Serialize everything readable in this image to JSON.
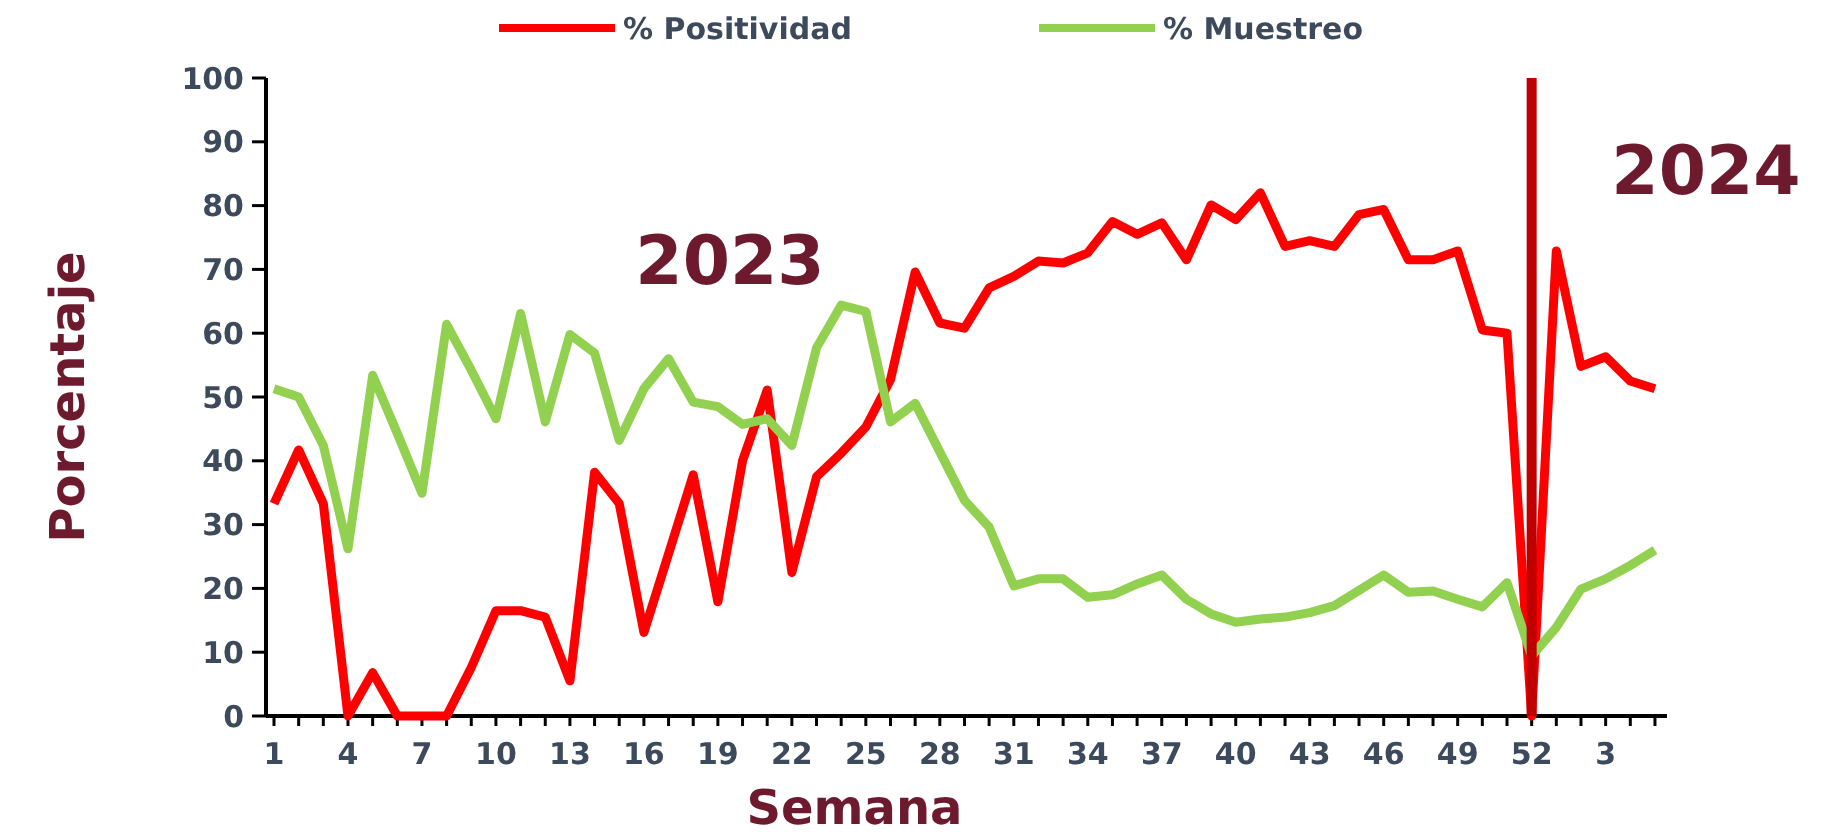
{
  "chart_data": {
    "type": "line",
    "xlabel": "Semana",
    "ylabel": "Porcentaje",
    "categories": [
      "1",
      null,
      null,
      "4",
      null,
      null,
      "7",
      null,
      null,
      "10",
      null,
      null,
      "13",
      null,
      null,
      "16",
      null,
      null,
      "19",
      null,
      null,
      "22",
      null,
      null,
      "25",
      null,
      null,
      "28",
      null,
      null,
      "31",
      null,
      null,
      "34",
      null,
      null,
      "37",
      null,
      null,
      "40",
      null,
      null,
      "43",
      null,
      null,
      "46",
      null,
      null,
      "49",
      null,
      null,
      "52",
      null,
      null,
      "3",
      null,
      null
    ],
    "series": [
      {
        "name": "% Positividad",
        "color": "#ff0000",
        "values": [
          33.3,
          41.7,
          33.3,
          0,
          6.8,
          0,
          0,
          0,
          7.6,
          16.5,
          16.5,
          15.5,
          5.5,
          38.2,
          33.3,
          13.1,
          25.4,
          37.8,
          17.9,
          40,
          51.1,
          22.5,
          37.5,
          41.2,
          45.3,
          52.7,
          69.6,
          61.6,
          60.8,
          67.1,
          68.9,
          71.3,
          71,
          72.6,
          77.5,
          75.5,
          77.3,
          71.5,
          80.1,
          77.8,
          82,
          73.6,
          74.5,
          73.6,
          78.6,
          79.4,
          71.5,
          71.5,
          72.9,
          60.5,
          60,
          0,
          72.9,
          54.8,
          56.3,
          52.5,
          51.3
        ]
      },
      {
        "name": "% Muestreo",
        "color": "#92d050",
        "values": [
          51.3,
          50,
          42.4,
          26.2,
          53.4,
          44.3,
          34.9,
          61.4,
          54.2,
          46.6,
          63.1,
          46.1,
          59.8,
          56.9,
          43.2,
          51.3,
          56,
          49.2,
          48.5,
          45.7,
          46.6,
          42.4,
          57.7,
          64.4,
          63.4,
          46.1,
          49,
          41.4,
          33.8,
          29.6,
          20.4,
          21.5,
          21.5,
          18.6,
          19,
          20.7,
          22.1,
          18.3,
          16,
          14.7,
          15.2,
          15.5,
          16.2,
          17.3,
          19.7,
          22.1,
          19.4,
          19.6,
          18.3,
          17.1,
          20.9,
          9.4,
          13.9,
          19.9,
          21.5,
          23.6,
          26
        ]
      }
    ],
    "ylim": [
      0,
      100
    ],
    "yticks": [
      0,
      10,
      20,
      30,
      40,
      50,
      60,
      70,
      80,
      90,
      100
    ],
    "ref_lines": [
      {
        "axis": "x",
        "value": "52",
        "color": "#c00000"
      }
    ],
    "annotations": [
      {
        "text": "2023"
      },
      {
        "text": "2024"
      }
    ],
    "legend": "top",
    "grid": false,
    "marker": "none",
    "line_style": "solid"
  }
}
